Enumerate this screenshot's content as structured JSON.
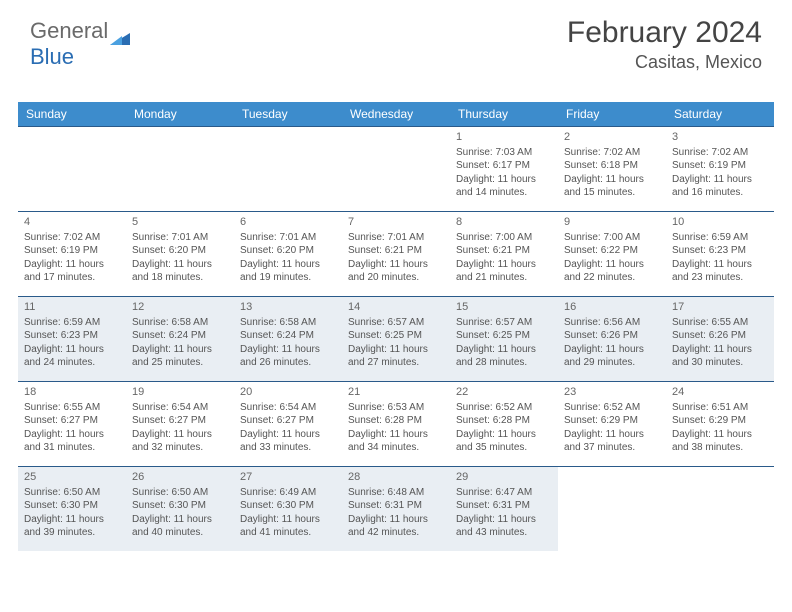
{
  "brand": {
    "part1": "General",
    "part2": "Blue"
  },
  "title": "February 2024",
  "subtitle": "Casitas, Mexico",
  "colors": {
    "header_bg": "#3d8ccc",
    "header_text": "#ffffff",
    "divider": "#2a5a8a",
    "shaded_bg": "#e9eef3",
    "text": "#555555",
    "brand_gray": "#6a6a6a",
    "brand_blue": "#2a6db3"
  },
  "calendar": {
    "type": "table",
    "day_headers": [
      "Sunday",
      "Monday",
      "Tuesday",
      "Wednesday",
      "Thursday",
      "Friday",
      "Saturday"
    ],
    "weeks": [
      {
        "shaded": false,
        "days": [
          {
            "num": "",
            "sunrise": "",
            "sunset": "",
            "daylight": ""
          },
          {
            "num": "",
            "sunrise": "",
            "sunset": "",
            "daylight": ""
          },
          {
            "num": "",
            "sunrise": "",
            "sunset": "",
            "daylight": ""
          },
          {
            "num": "",
            "sunrise": "",
            "sunset": "",
            "daylight": ""
          },
          {
            "num": "1",
            "sunrise": "Sunrise: 7:03 AM",
            "sunset": "Sunset: 6:17 PM",
            "daylight": "Daylight: 11 hours and 14 minutes."
          },
          {
            "num": "2",
            "sunrise": "Sunrise: 7:02 AM",
            "sunset": "Sunset: 6:18 PM",
            "daylight": "Daylight: 11 hours and 15 minutes."
          },
          {
            "num": "3",
            "sunrise": "Sunrise: 7:02 AM",
            "sunset": "Sunset: 6:19 PM",
            "daylight": "Daylight: 11 hours and 16 minutes."
          }
        ]
      },
      {
        "shaded": false,
        "days": [
          {
            "num": "4",
            "sunrise": "Sunrise: 7:02 AM",
            "sunset": "Sunset: 6:19 PM",
            "daylight": "Daylight: 11 hours and 17 minutes."
          },
          {
            "num": "5",
            "sunrise": "Sunrise: 7:01 AM",
            "sunset": "Sunset: 6:20 PM",
            "daylight": "Daylight: 11 hours and 18 minutes."
          },
          {
            "num": "6",
            "sunrise": "Sunrise: 7:01 AM",
            "sunset": "Sunset: 6:20 PM",
            "daylight": "Daylight: 11 hours and 19 minutes."
          },
          {
            "num": "7",
            "sunrise": "Sunrise: 7:01 AM",
            "sunset": "Sunset: 6:21 PM",
            "daylight": "Daylight: 11 hours and 20 minutes."
          },
          {
            "num": "8",
            "sunrise": "Sunrise: 7:00 AM",
            "sunset": "Sunset: 6:21 PM",
            "daylight": "Daylight: 11 hours and 21 minutes."
          },
          {
            "num": "9",
            "sunrise": "Sunrise: 7:00 AM",
            "sunset": "Sunset: 6:22 PM",
            "daylight": "Daylight: 11 hours and 22 minutes."
          },
          {
            "num": "10",
            "sunrise": "Sunrise: 6:59 AM",
            "sunset": "Sunset: 6:23 PM",
            "daylight": "Daylight: 11 hours and 23 minutes."
          }
        ]
      },
      {
        "shaded": true,
        "days": [
          {
            "num": "11",
            "sunrise": "Sunrise: 6:59 AM",
            "sunset": "Sunset: 6:23 PM",
            "daylight": "Daylight: 11 hours and 24 minutes."
          },
          {
            "num": "12",
            "sunrise": "Sunrise: 6:58 AM",
            "sunset": "Sunset: 6:24 PM",
            "daylight": "Daylight: 11 hours and 25 minutes."
          },
          {
            "num": "13",
            "sunrise": "Sunrise: 6:58 AM",
            "sunset": "Sunset: 6:24 PM",
            "daylight": "Daylight: 11 hours and 26 minutes."
          },
          {
            "num": "14",
            "sunrise": "Sunrise: 6:57 AM",
            "sunset": "Sunset: 6:25 PM",
            "daylight": "Daylight: 11 hours and 27 minutes."
          },
          {
            "num": "15",
            "sunrise": "Sunrise: 6:57 AM",
            "sunset": "Sunset: 6:25 PM",
            "daylight": "Daylight: 11 hours and 28 minutes."
          },
          {
            "num": "16",
            "sunrise": "Sunrise: 6:56 AM",
            "sunset": "Sunset: 6:26 PM",
            "daylight": "Daylight: 11 hours and 29 minutes."
          },
          {
            "num": "17",
            "sunrise": "Sunrise: 6:55 AM",
            "sunset": "Sunset: 6:26 PM",
            "daylight": "Daylight: 11 hours and 30 minutes."
          }
        ]
      },
      {
        "shaded": false,
        "days": [
          {
            "num": "18",
            "sunrise": "Sunrise: 6:55 AM",
            "sunset": "Sunset: 6:27 PM",
            "daylight": "Daylight: 11 hours and 31 minutes."
          },
          {
            "num": "19",
            "sunrise": "Sunrise: 6:54 AM",
            "sunset": "Sunset: 6:27 PM",
            "daylight": "Daylight: 11 hours and 32 minutes."
          },
          {
            "num": "20",
            "sunrise": "Sunrise: 6:54 AM",
            "sunset": "Sunset: 6:27 PM",
            "daylight": "Daylight: 11 hours and 33 minutes."
          },
          {
            "num": "21",
            "sunrise": "Sunrise: 6:53 AM",
            "sunset": "Sunset: 6:28 PM",
            "daylight": "Daylight: 11 hours and 34 minutes."
          },
          {
            "num": "22",
            "sunrise": "Sunrise: 6:52 AM",
            "sunset": "Sunset: 6:28 PM",
            "daylight": "Daylight: 11 hours and 35 minutes."
          },
          {
            "num": "23",
            "sunrise": "Sunrise: 6:52 AM",
            "sunset": "Sunset: 6:29 PM",
            "daylight": "Daylight: 11 hours and 37 minutes."
          },
          {
            "num": "24",
            "sunrise": "Sunrise: 6:51 AM",
            "sunset": "Sunset: 6:29 PM",
            "daylight": "Daylight: 11 hours and 38 minutes."
          }
        ]
      },
      {
        "shaded": true,
        "days": [
          {
            "num": "25",
            "sunrise": "Sunrise: 6:50 AM",
            "sunset": "Sunset: 6:30 PM",
            "daylight": "Daylight: 11 hours and 39 minutes."
          },
          {
            "num": "26",
            "sunrise": "Sunrise: 6:50 AM",
            "sunset": "Sunset: 6:30 PM",
            "daylight": "Daylight: 11 hours and 40 minutes."
          },
          {
            "num": "27",
            "sunrise": "Sunrise: 6:49 AM",
            "sunset": "Sunset: 6:30 PM",
            "daylight": "Daylight: 11 hours and 41 minutes."
          },
          {
            "num": "28",
            "sunrise": "Sunrise: 6:48 AM",
            "sunset": "Sunset: 6:31 PM",
            "daylight": "Daylight: 11 hours and 42 minutes."
          },
          {
            "num": "29",
            "sunrise": "Sunrise: 6:47 AM",
            "sunset": "Sunset: 6:31 PM",
            "daylight": "Daylight: 11 hours and 43 minutes."
          },
          {
            "num": "",
            "sunrise": "",
            "sunset": "",
            "daylight": ""
          },
          {
            "num": "",
            "sunrise": "",
            "sunset": "",
            "daylight": ""
          }
        ]
      }
    ]
  }
}
